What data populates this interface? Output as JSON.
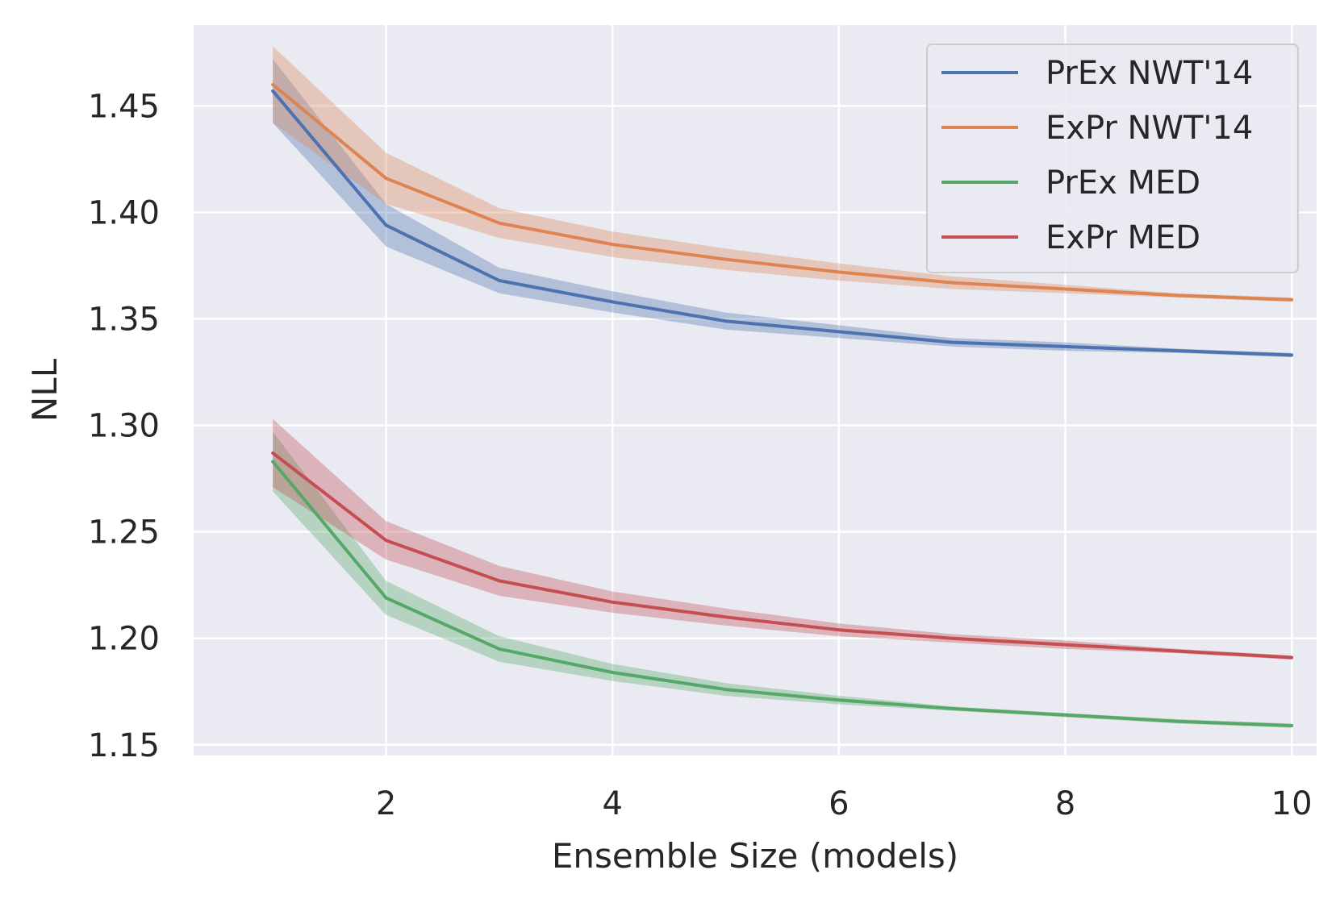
{
  "chart_data": {
    "type": "line",
    "title": "",
    "xlabel": "Ensemble Size (models)",
    "ylabel": "NLL",
    "xlim": [
      0.3,
      10.22
    ],
    "ylim": [
      1.145,
      1.488
    ],
    "xticks": [
      2,
      4,
      6,
      8,
      10
    ],
    "yticks": [
      1.15,
      1.2,
      1.25,
      1.3,
      1.35,
      1.4,
      1.45
    ],
    "grid": true,
    "legend_position": "top-right",
    "x": [
      1,
      2,
      3,
      4,
      5,
      6,
      7,
      8,
      9,
      10
    ],
    "series": [
      {
        "name": "PrEx NWT'14",
        "color": "#4c72b0",
        "values": [
          1.457,
          1.394,
          1.368,
          1.358,
          1.349,
          1.344,
          1.339,
          1.337,
          1.335,
          1.333
        ],
        "band": [
          0.015,
          0.01,
          0.006,
          0.005,
          0.004,
          0.003,
          0.002,
          0.002,
          0.001,
          0.001
        ]
      },
      {
        "name": "ExPr NWT'14",
        "color": "#dd8452",
        "values": [
          1.46,
          1.416,
          1.395,
          1.385,
          1.378,
          1.372,
          1.367,
          1.364,
          1.361,
          1.359
        ],
        "band": [
          0.018,
          0.012,
          0.007,
          0.006,
          0.005,
          0.004,
          0.003,
          0.002,
          0.001,
          0.001
        ]
      },
      {
        "name": "PrEx MED",
        "color": "#55a868",
        "values": [
          1.283,
          1.219,
          1.195,
          1.184,
          1.176,
          1.171,
          1.167,
          1.164,
          1.161,
          1.159
        ],
        "band": [
          0.014,
          0.008,
          0.006,
          0.004,
          0.003,
          0.002,
          0.001,
          0.001,
          0.001,
          0.001
        ]
      },
      {
        "name": "ExPr MED",
        "color": "#c44e52",
        "values": [
          1.287,
          1.246,
          1.227,
          1.217,
          1.21,
          1.204,
          1.2,
          1.197,
          1.194,
          1.191
        ],
        "band": [
          0.016,
          0.009,
          0.007,
          0.005,
          0.004,
          0.003,
          0.002,
          0.002,
          0.001,
          0.001
        ]
      }
    ]
  }
}
